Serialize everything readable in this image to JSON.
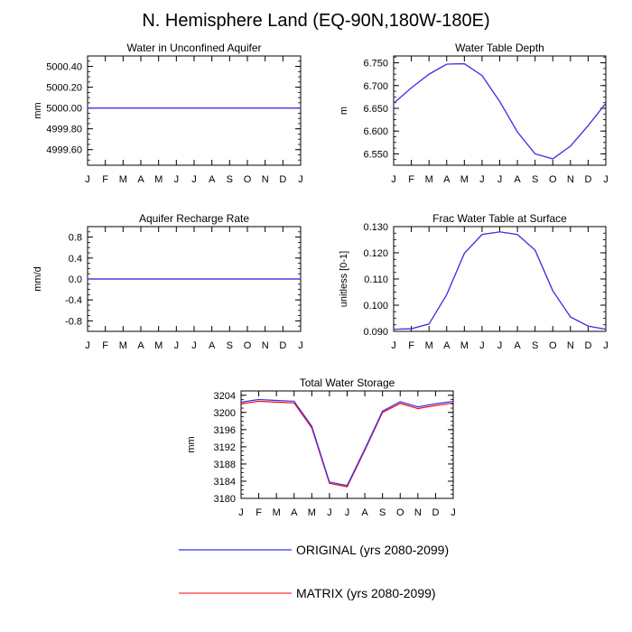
{
  "page": {
    "title": "N. Hemisphere Land (EQ-90N,180W-180E)"
  },
  "legend": {
    "items": [
      {
        "label": "ORIGINAL (yrs 2080-2099)",
        "color": "#3333ff"
      },
      {
        "label": "MATRIX (yrs 2080-2099)",
        "color": "#ff3333"
      }
    ]
  },
  "colors": {
    "original": "#3333ff",
    "matrix": "#ff0000"
  },
  "chart_data": [
    {
      "type": "line",
      "title": "Water in Unconfined Aquifer",
      "ylabel": "mm",
      "categories": [
        "J",
        "F",
        "M",
        "A",
        "M",
        "J",
        "J",
        "A",
        "S",
        "O",
        "N",
        "D",
        "J"
      ],
      "ylim": [
        4999.45,
        5000.5
      ],
      "yticks": [
        5000.4,
        5000.2,
        5000.0,
        4999.8,
        4999.6
      ],
      "ytick_labels": [
        "5000.40",
        "5000.20",
        "5000.00",
        "4999.80",
        "4999.60"
      ],
      "series": [
        {
          "name": "ORIGINAL",
          "values": [
            5000.0,
            5000.0,
            5000.0,
            5000.0,
            5000.0,
            5000.0,
            5000.0,
            5000.0,
            5000.0,
            5000.0,
            5000.0,
            5000.0,
            5000.0
          ]
        },
        {
          "name": "MATRIX",
          "values": [
            5000.0,
            5000.0,
            5000.0,
            5000.0,
            5000.0,
            5000.0,
            5000.0,
            5000.0,
            5000.0,
            5000.0,
            5000.0,
            5000.0,
            5000.0
          ]
        }
      ]
    },
    {
      "type": "line",
      "title": "Water Table Depth",
      "ylabel": "m",
      "categories": [
        "J",
        "F",
        "M",
        "A",
        "M",
        "J",
        "J",
        "A",
        "S",
        "O",
        "N",
        "D",
        "J"
      ],
      "ylim": [
        6.525,
        6.765
      ],
      "yticks": [
        6.75,
        6.7,
        6.65,
        6.6,
        6.55
      ],
      "ytick_labels": [
        "6.750",
        "6.700",
        "6.650",
        "6.600",
        "6.550"
      ],
      "series": [
        {
          "name": "ORIGINAL",
          "values": [
            6.661,
            6.695,
            6.725,
            6.747,
            6.748,
            6.722,
            6.665,
            6.598,
            6.55,
            6.539,
            6.567,
            6.612,
            6.661
          ]
        },
        {
          "name": "MATRIX",
          "values": [
            6.661,
            6.695,
            6.725,
            6.747,
            6.748,
            6.722,
            6.665,
            6.598,
            6.55,
            6.539,
            6.567,
            6.612,
            6.661
          ]
        }
      ]
    },
    {
      "type": "line",
      "title": "Aquifer Recharge Rate",
      "ylabel": "mm/d",
      "categories": [
        "J",
        "F",
        "M",
        "A",
        "M",
        "J",
        "J",
        "A",
        "S",
        "O",
        "N",
        "D",
        "J"
      ],
      "ylim": [
        -1.0,
        1.0
      ],
      "yticks": [
        0.8,
        0.4,
        0.0,
        -0.4,
        -0.8
      ],
      "ytick_labels": [
        "0.8",
        "0.4",
        "0.0",
        "-0.4",
        "-0.8"
      ],
      "series": [
        {
          "name": "ORIGINAL",
          "values": [
            0,
            0,
            0,
            0,
            0,
            0,
            0,
            0,
            0,
            0,
            0,
            0,
            0
          ]
        },
        {
          "name": "MATRIX",
          "values": [
            0,
            0,
            0,
            0,
            0,
            0,
            0,
            0,
            0,
            0,
            0,
            0,
            0
          ]
        }
      ]
    },
    {
      "type": "line",
      "title": "Frac Water Table at Surface",
      "ylabel": "unitless [0-1]",
      "categories": [
        "J",
        "F",
        "M",
        "A",
        "M",
        "J",
        "J",
        "A",
        "S",
        "O",
        "N",
        "D",
        "J"
      ],
      "ylim": [
        0.09,
        0.13
      ],
      "yticks": [
        0.13,
        0.12,
        0.11,
        0.1,
        0.09
      ],
      "ytick_labels": [
        "0.130",
        "0.120",
        "0.110",
        "0.100",
        "0.090"
      ],
      "series": [
        {
          "name": "ORIGINAL",
          "values": [
            0.0908,
            0.091,
            0.0928,
            0.104,
            0.1198,
            0.127,
            0.128,
            0.127,
            0.121,
            0.1055,
            0.0955,
            0.092,
            0.0908
          ]
        },
        {
          "name": "MATRIX",
          "values": [
            0.0908,
            0.091,
            0.0928,
            0.104,
            0.1198,
            0.127,
            0.128,
            0.127,
            0.121,
            0.1055,
            0.0955,
            0.092,
            0.0908
          ]
        }
      ]
    },
    {
      "type": "line",
      "title": "Total Water Storage",
      "ylabel": "mm",
      "categories": [
        "J",
        "F",
        "M",
        "A",
        "M",
        "J",
        "J",
        "A",
        "S",
        "O",
        "N",
        "D",
        "J"
      ],
      "ylim": [
        3180,
        3205
      ],
      "yticks": [
        3204,
        3200,
        3196,
        3192,
        3188,
        3184,
        3180
      ],
      "ytick_labels": [
        "3204",
        "3200",
        "3196",
        "3192",
        "3188",
        "3184",
        "3180"
      ],
      "series": [
        {
          "name": "ORIGINAL",
          "values": [
            3202.4,
            3203.0,
            3202.8,
            3202.6,
            3196.8,
            3183.8,
            3183.0,
            3191.5,
            3200.3,
            3202.5,
            3201.3,
            3202.0,
            3202.6
          ]
        },
        {
          "name": "MATRIX",
          "values": [
            3202.0,
            3202.6,
            3202.4,
            3202.2,
            3196.4,
            3183.5,
            3182.7,
            3191.2,
            3200.0,
            3202.1,
            3200.9,
            3201.6,
            3202.2
          ]
        }
      ]
    }
  ]
}
